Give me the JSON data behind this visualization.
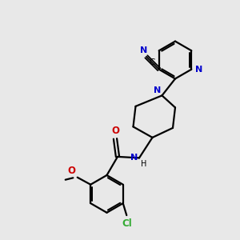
{
  "bg_color": "#e8e8e8",
  "bond_color": "#000000",
  "n_color": "#0000cc",
  "o_color": "#cc0000",
  "cl_color": "#33aa33",
  "line_width": 1.6,
  "fig_size": [
    3.0,
    3.0
  ],
  "dpi": 100,
  "xlim": [
    0,
    10
  ],
  "ylim": [
    0,
    10
  ]
}
